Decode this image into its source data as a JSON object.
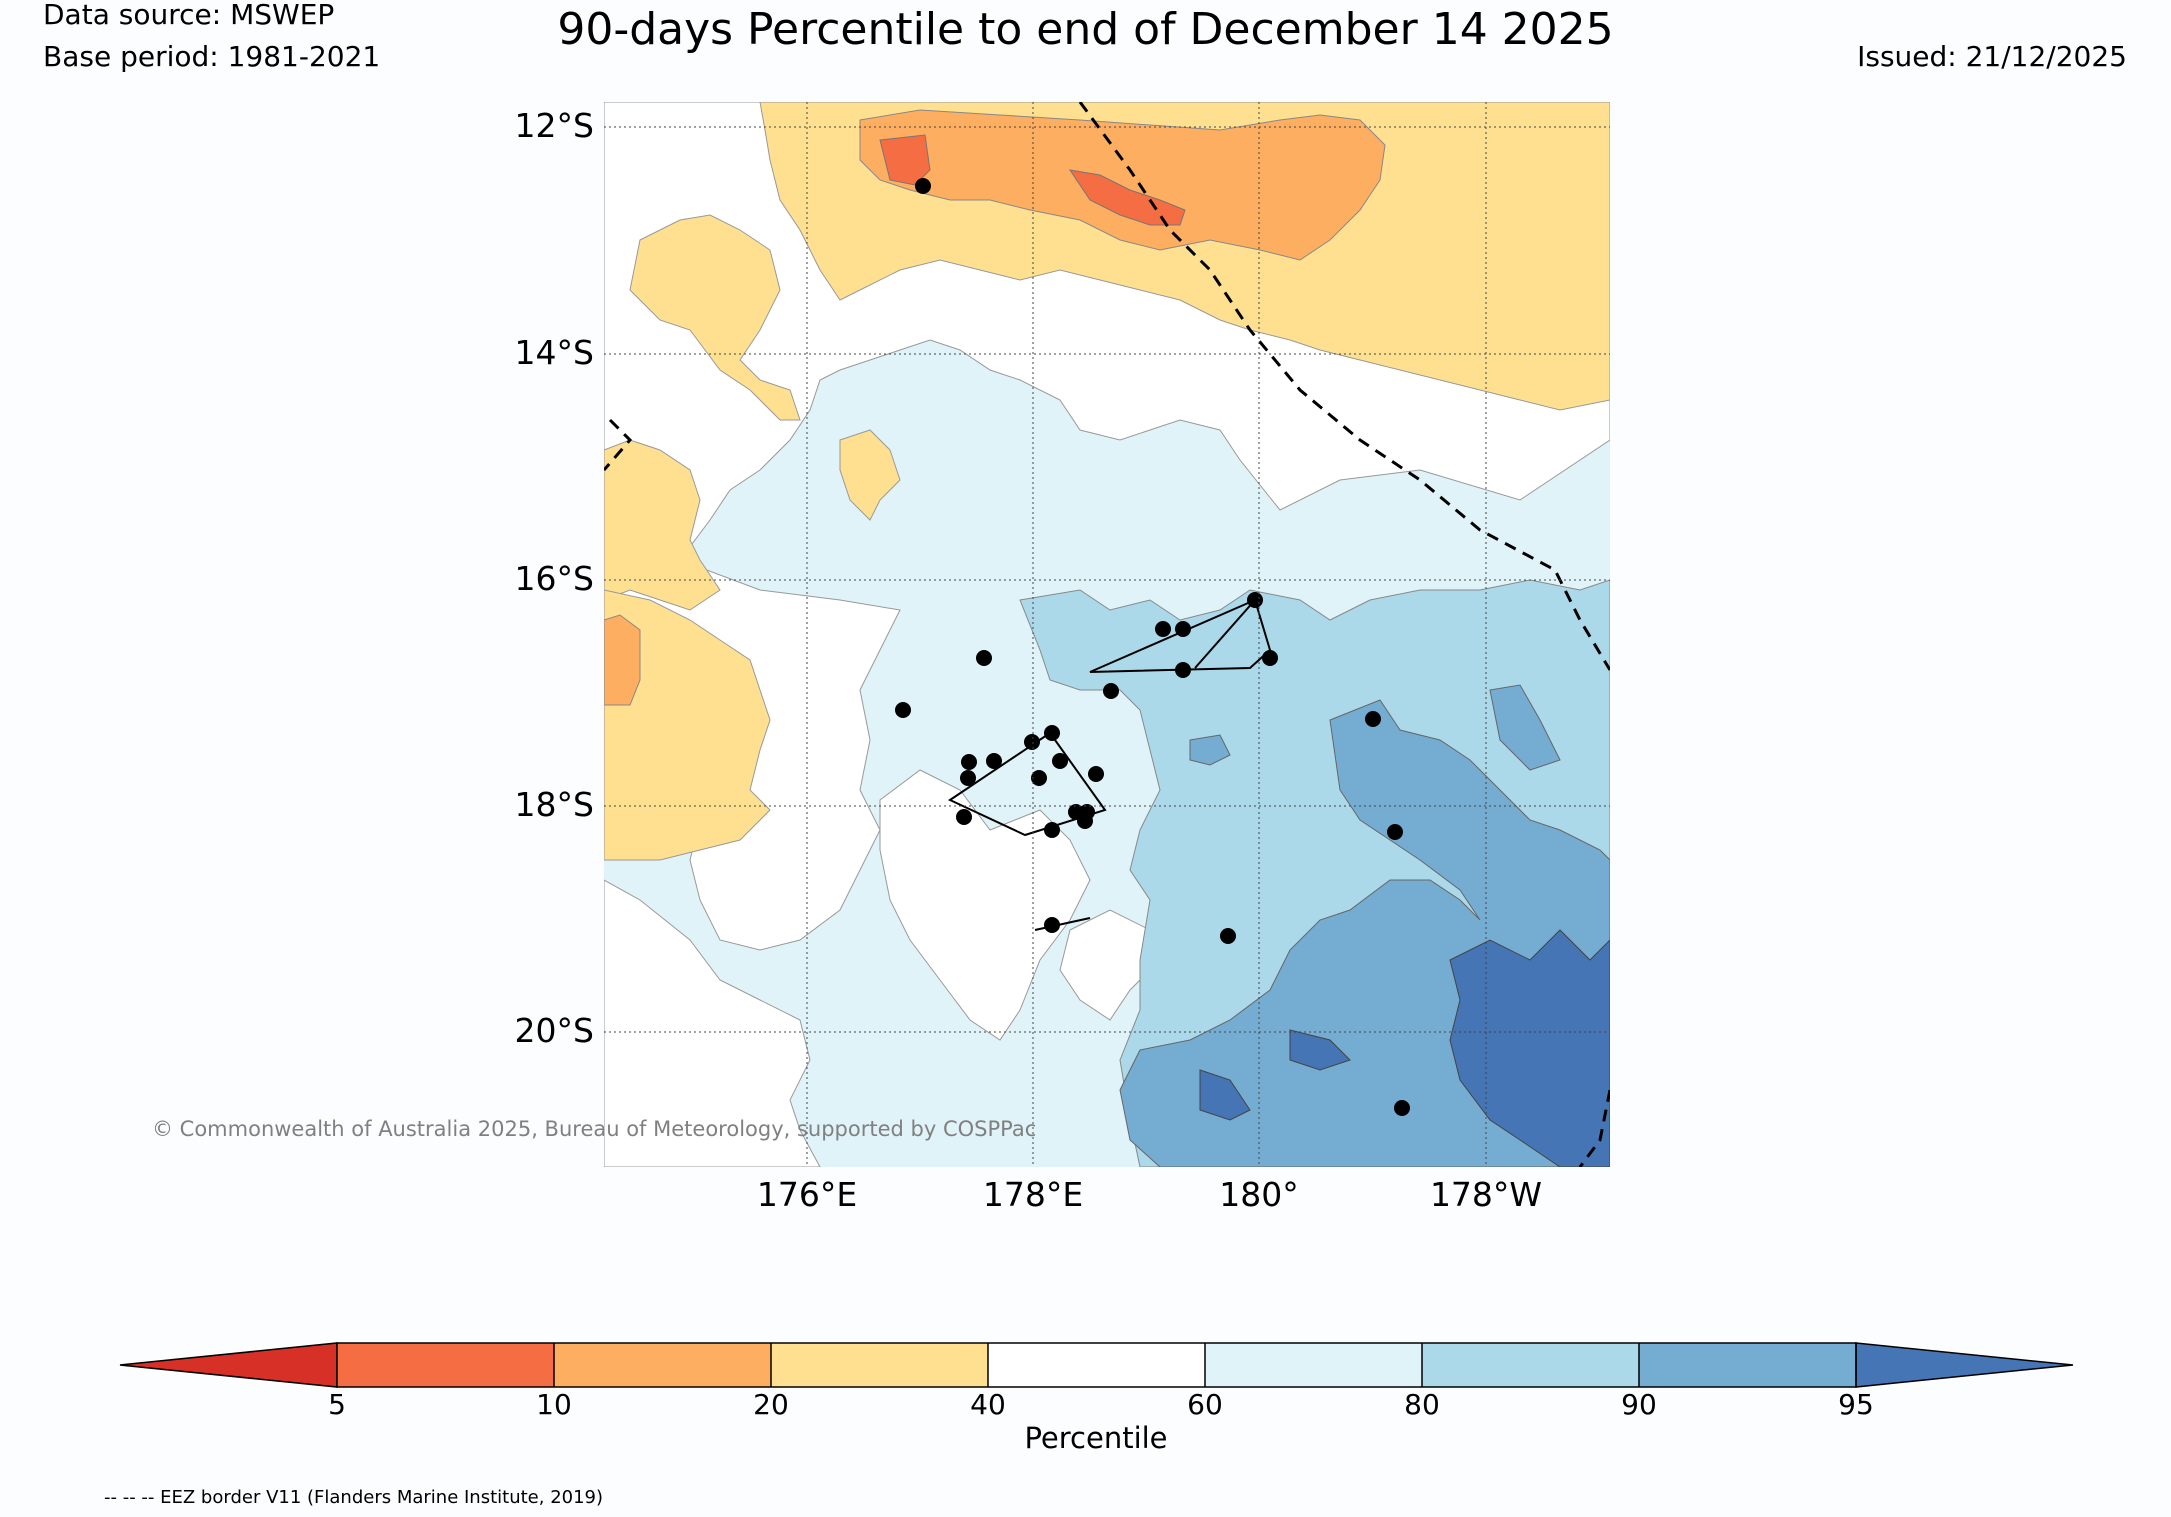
{
  "header": {
    "data_source": "Data source: MSWEP",
    "base_period": "Base period: 1981-2021",
    "title": "90-days Percentile to end of December 14 2025",
    "issued": "Issued: 21/12/2025"
  },
  "map": {
    "lat_labels": [
      "12°S",
      "14°S",
      "16°S",
      "18°S",
      "20°S"
    ],
    "lon_labels": [
      "176°E",
      "178°E",
      "180°",
      "178°W"
    ],
    "copyright": "© Commonwealth of Australia 2025, Bureau of Meteorology, supported by COSPPac",
    "legend_note": "-- -- -- EEZ border V11 (Flanders Marine Institute, 2019)"
  },
  "colorbar": {
    "label": "Percentile",
    "ticks": [
      "5",
      "10",
      "20",
      "40",
      "60",
      "80",
      "90",
      "95"
    ],
    "colors": {
      "below_5": "#d73027",
      "5_10": "#f46d43",
      "10_20": "#fdae61",
      "20_40": "#fee090",
      "40_60": "#ffffff",
      "60_80": "#e0f3f8",
      "80_90": "#abd9e9",
      "90_95": "#74add1",
      "above_95": "#4575b4"
    }
  }
}
